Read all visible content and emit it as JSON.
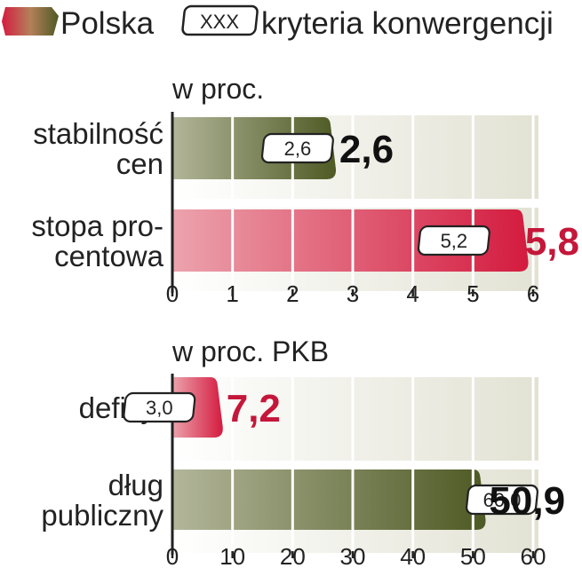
{
  "legend": {
    "polska_label": "Polska",
    "box_text": "XXX",
    "criteria_label": "kryteria konwergencji"
  },
  "colors": {
    "green_dark": "#4e5a24",
    "green_light": "#b3b69a",
    "red_dark": "#d41b3f",
    "red_light": "#eca3ad",
    "red_value": "#c4173a",
    "value_dark": "#111111",
    "track": "#ebebe0"
  },
  "chart_data": [
    {
      "type": "bar",
      "orientation": "horizontal",
      "unit_label": "w proc.",
      "categories": [
        {
          "lines": [
            "stabilność",
            "cen"
          ],
          "value": 2.6,
          "value_label": "2,6",
          "criterion": 2.6,
          "criterion_label": "2,6",
          "color": "green"
        },
        {
          "lines": [
            "stopa pro-",
            "centowa"
          ],
          "value": 5.8,
          "value_label": "5,8",
          "criterion": 5.2,
          "criterion_label": "5,2",
          "color": "red"
        }
      ],
      "xlim": [
        0,
        6
      ],
      "ticks": [
        "0",
        "1",
        "2",
        "3",
        "4",
        "5",
        "6"
      ],
      "grid": true
    },
    {
      "type": "bar",
      "orientation": "horizontal",
      "unit_label": "w proc. PKB",
      "categories": [
        {
          "lines": [
            "deficyt"
          ],
          "value": 7.2,
          "value_label": "7,2",
          "criterion": 3.0,
          "criterion_label": "3,0",
          "color": "red"
        },
        {
          "lines": [
            "dług",
            "publiczny"
          ],
          "value": 50.9,
          "value_label": "50,9",
          "criterion": 60.0,
          "criterion_label": "60,0",
          "color": "green"
        }
      ],
      "xlim": [
        0,
        60
      ],
      "ticks": [
        "0",
        "10",
        "20",
        "30",
        "40",
        "50",
        "60"
      ],
      "grid": true
    }
  ]
}
